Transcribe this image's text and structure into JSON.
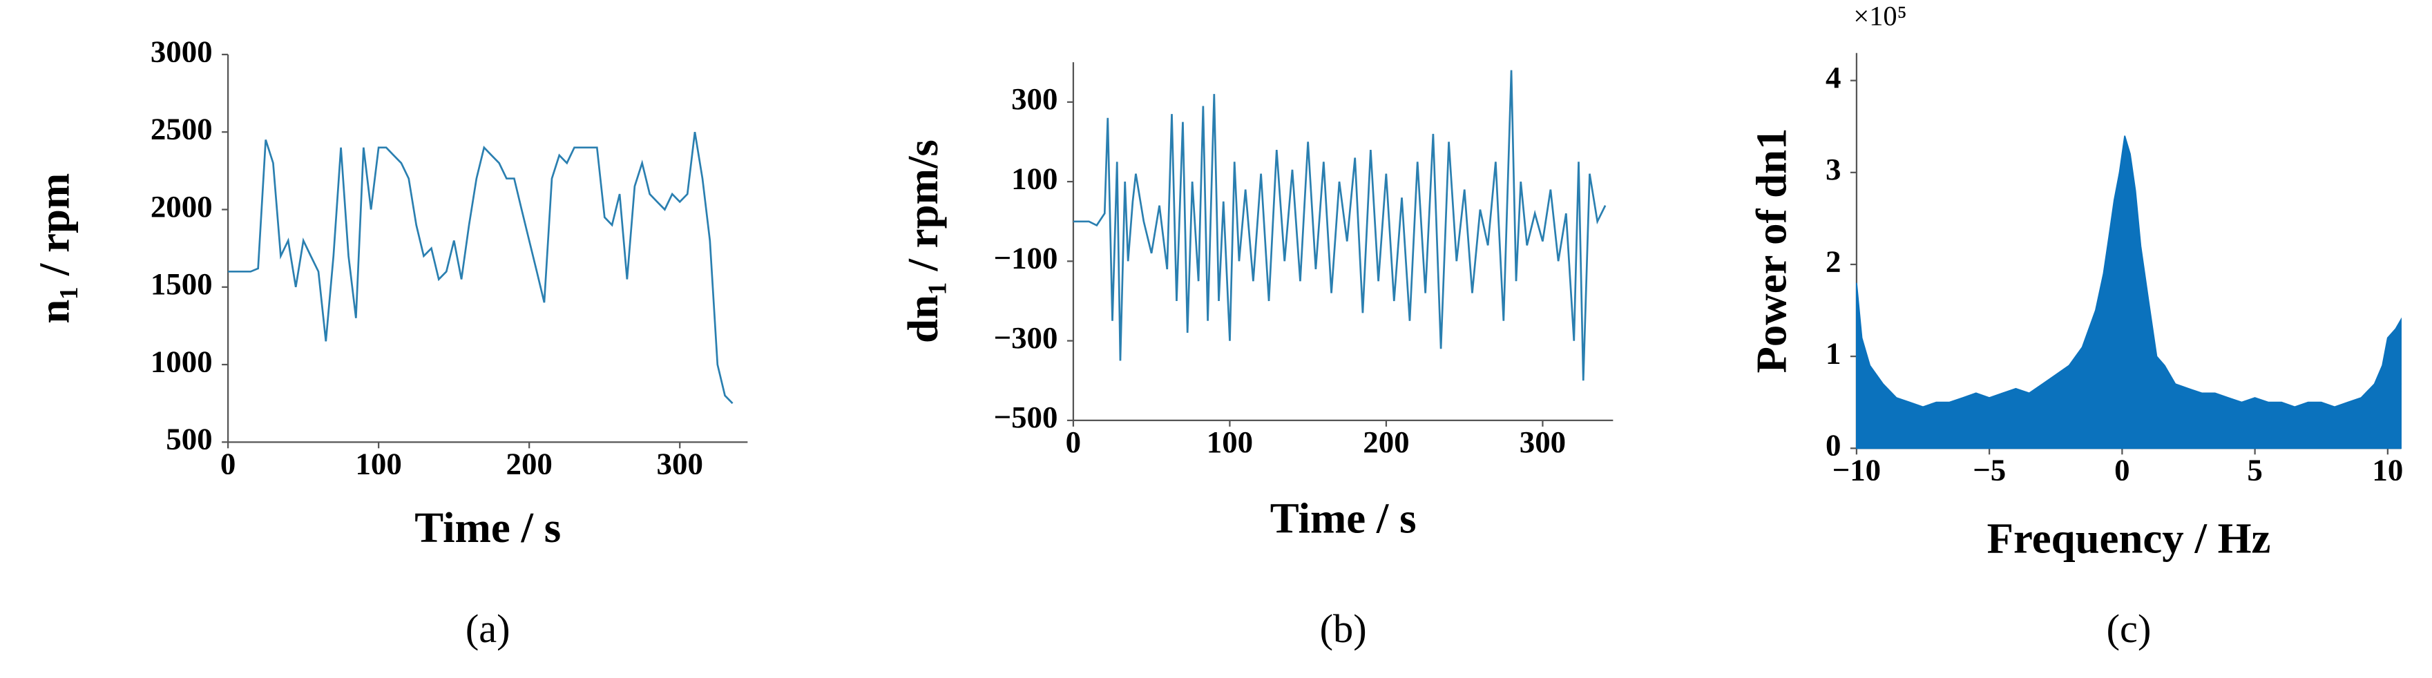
{
  "chart_data": [
    {
      "type": "line",
      "caption": "(a)",
      "x_label": "Time / s",
      "y_label": "n₁ / rpm",
      "xlim": [
        0,
        345
      ],
      "ylim": [
        500,
        3000
      ],
      "xticks": [
        0,
        100,
        200,
        300
      ],
      "yticks": [
        500,
        1000,
        1500,
        2000,
        2500,
        3000
      ],
      "series": [
        {
          "color": "#2a7fb0",
          "x": [
            0,
            5,
            10,
            15,
            20,
            25,
            30,
            35,
            40,
            45,
            50,
            55,
            60,
            65,
            70,
            75,
            80,
            85,
            90,
            95,
            100,
            105,
            110,
            115,
            120,
            125,
            130,
            135,
            140,
            145,
            150,
            155,
            160,
            165,
            170,
            175,
            180,
            185,
            190,
            195,
            200,
            205,
            210,
            215,
            220,
            225,
            230,
            235,
            240,
            245,
            250,
            255,
            260,
            265,
            270,
            275,
            280,
            285,
            290,
            295,
            300,
            305,
            310,
            315,
            320,
            325,
            330,
            335
          ],
          "values": [
            1600,
            1600,
            1600,
            1600,
            1620,
            2450,
            2300,
            1700,
            1800,
            1500,
            1800,
            1700,
            1600,
            1150,
            1700,
            2400,
            1700,
            1300,
            2400,
            2000,
            2400,
            2400,
            2350,
            2300,
            2200,
            1900,
            1700,
            1750,
            1550,
            1600,
            1800,
            1550,
            1900,
            2200,
            2400,
            2350,
            2300,
            2200,
            2200,
            2000,
            1800,
            1600,
            1400,
            2200,
            2350,
            2300,
            2400,
            2400,
            2400,
            2400,
            1950,
            1900,
            2100,
            1550,
            2150,
            2300,
            2100,
            2050,
            2000,
            2100,
            2050,
            2100,
            2500,
            2200,
            1800,
            1000,
            800,
            750
          ]
        }
      ]
    },
    {
      "type": "line",
      "caption": "(b)",
      "x_label": "Time / s",
      "y_label": "dn₁ / rpm/s",
      "xlim": [
        0,
        345
      ],
      "ylim": [
        -500,
        400
      ],
      "xticks": [
        0,
        100,
        200,
        300
      ],
      "yticks": [
        {
          "value": -500,
          "label": "−500"
        },
        {
          "value": -300,
          "label": "−300"
        },
        {
          "value": -100,
          "label": "−100"
        },
        100,
        300
      ],
      "series": [
        {
          "color": "#2a7fb0",
          "x": [
            0,
            5,
            10,
            15,
            20,
            22,
            25,
            28,
            30,
            33,
            35,
            38,
            40,
            45,
            50,
            55,
            60,
            63,
            66,
            70,
            73,
            76,
            80,
            83,
            86,
            90,
            93,
            96,
            100,
            103,
            106,
            110,
            115,
            120,
            125,
            130,
            135,
            140,
            145,
            150,
            155,
            160,
            165,
            170,
            175,
            180,
            185,
            190,
            195,
            200,
            205,
            210,
            215,
            220,
            225,
            230,
            235,
            240,
            245,
            250,
            255,
            260,
            265,
            270,
            275,
            280,
            283,
            286,
            290,
            295,
            300,
            305,
            310,
            315,
            320,
            323,
            326,
            330,
            335,
            340
          ],
          "values": [
            0,
            0,
            0,
            -10,
            20,
            260,
            -250,
            150,
            -350,
            100,
            -100,
            50,
            120,
            0,
            -80,
            40,
            -120,
            270,
            -200,
            250,
            -280,
            100,
            -150,
            290,
            -250,
            320,
            -200,
            50,
            -300,
            150,
            -100,
            80,
            -150,
            120,
            -200,
            180,
            -100,
            130,
            -150,
            200,
            -120,
            150,
            -180,
            100,
            -50,
            160,
            -230,
            180,
            -150,
            120,
            -200,
            60,
            -250,
            150,
            -180,
            220,
            -320,
            200,
            -100,
            80,
            -180,
            30,
            -60,
            150,
            -250,
            380,
            -150,
            100,
            -60,
            20,
            -50,
            80,
            -100,
            20,
            -300,
            150,
            -400,
            120,
            0,
            40
          ]
        }
      ]
    },
    {
      "type": "area",
      "caption": "(c)",
      "x_label": "Frequency / Hz",
      "y_label": "Power of dn1",
      "annotation": "×10⁵",
      "xlim": [
        -10,
        10.5
      ],
      "ylim": [
        0,
        4.3
      ],
      "xticks": [
        {
          "value": -10,
          "label": "−10"
        },
        {
          "value": -5,
          "label": "−5"
        },
        0,
        5,
        10
      ],
      "yticks": [
        0,
        1,
        2,
        3,
        4
      ],
      "series": [
        {
          "color": "#0b72bd",
          "x": [
            -10,
            -9.8,
            -9.5,
            -9,
            -8.5,
            -8,
            -7.5,
            -7,
            -6.5,
            -6,
            -5.5,
            -5,
            -4.5,
            -4,
            -3.5,
            -3,
            -2.5,
            -2,
            -1.5,
            -1,
            -0.7,
            -0.5,
            -0.3,
            -0.1,
            0.1,
            0.3,
            0.5,
            0.7,
            1,
            1.3,
            1.6,
            2,
            2.5,
            3,
            3.5,
            4,
            4.5,
            5,
            5.5,
            6,
            6.5,
            7,
            7.5,
            8,
            8.5,
            9,
            9.5,
            9.8,
            10,
            10.3,
            10.5
          ],
          "values": [
            1.8,
            1.2,
            0.9,
            0.7,
            0.55,
            0.5,
            0.45,
            0.5,
            0.5,
            0.55,
            0.6,
            0.55,
            0.6,
            0.65,
            0.6,
            0.7,
            0.8,
            0.9,
            1.1,
            1.5,
            1.9,
            2.3,
            2.7,
            3.0,
            3.4,
            3.2,
            2.8,
            2.2,
            1.6,
            1.0,
            0.9,
            0.7,
            0.65,
            0.6,
            0.6,
            0.55,
            0.5,
            0.55,
            0.5,
            0.5,
            0.45,
            0.5,
            0.5,
            0.45,
            0.5,
            0.55,
            0.7,
            0.9,
            1.2,
            1.3,
            1.4
          ]
        }
      ]
    }
  ]
}
